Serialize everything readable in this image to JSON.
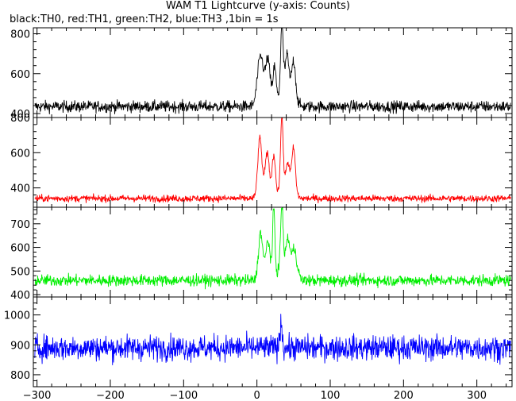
{
  "title": "WAM T1 Lightcurve (y-axis: Counts)",
  "subtitle": "black:TH0, red:TH1, green:TH2, blue:TH3 ,1bin = 1s",
  "chart_data": {
    "type": "line",
    "xlim": [
      -305,
      348
    ],
    "x_ticks": [
      -300,
      -200,
      -100,
      0,
      100,
      200,
      300
    ],
    "panels": [
      {
        "name": "TH0",
        "color": "#000000",
        "ylim": [
          380,
          830
        ],
        "y_ticks": [
          400,
          600,
          800
        ],
        "baseline": 435,
        "noise": 38,
        "peaks": [
          {
            "x": 5,
            "height": 240,
            "width": 6
          },
          {
            "x": 15,
            "height": 200,
            "width": 4
          },
          {
            "x": 24,
            "height": 160,
            "width": 3
          },
          {
            "x": 34,
            "height": 370,
            "width": 2.5
          },
          {
            "x": 41,
            "height": 230,
            "width": 4
          },
          {
            "x": 50,
            "height": 215,
            "width": 4
          }
        ]
      },
      {
        "name": "TH1",
        "color": "#ff0000",
        "ylim": [
          290,
          800
        ],
        "y_ticks": [
          400,
          600,
          800
        ],
        "baseline": 340,
        "noise": 26,
        "peaks": [
          {
            "x": 4,
            "height": 330,
            "width": 4
          },
          {
            "x": 14,
            "height": 230,
            "width": 4
          },
          {
            "x": 23,
            "height": 210,
            "width": 3
          },
          {
            "x": 34,
            "height": 430,
            "width": 2.5
          },
          {
            "x": 42,
            "height": 180,
            "width": 4
          },
          {
            "x": 50,
            "height": 270,
            "width": 3.5
          }
        ]
      },
      {
        "name": "TH2",
        "color": "#00ee00",
        "ylim": [
          390,
          770
        ],
        "y_ticks": [
          400,
          500,
          600,
          700
        ],
        "baseline": 460,
        "noise": 32,
        "peaks": [
          {
            "x": 5,
            "height": 190,
            "width": 4
          },
          {
            "x": 15,
            "height": 140,
            "width": 4
          },
          {
            "x": 23,
            "height": 270,
            "width": 2
          },
          {
            "x": 34,
            "height": 280,
            "width": 2.5
          },
          {
            "x": 42,
            "height": 150,
            "width": 4
          },
          {
            "x": 51,
            "height": 120,
            "width": 5
          }
        ]
      },
      {
        "name": "TH3",
        "color": "#0000ff",
        "ylim": [
          760,
          1060
        ],
        "y_ticks": [
          800,
          900,
          1000
        ],
        "baseline": 890,
        "noise": 55,
        "peaks": [
          {
            "x": 33,
            "height": 90,
            "width": 2
          }
        ]
      }
    ]
  }
}
